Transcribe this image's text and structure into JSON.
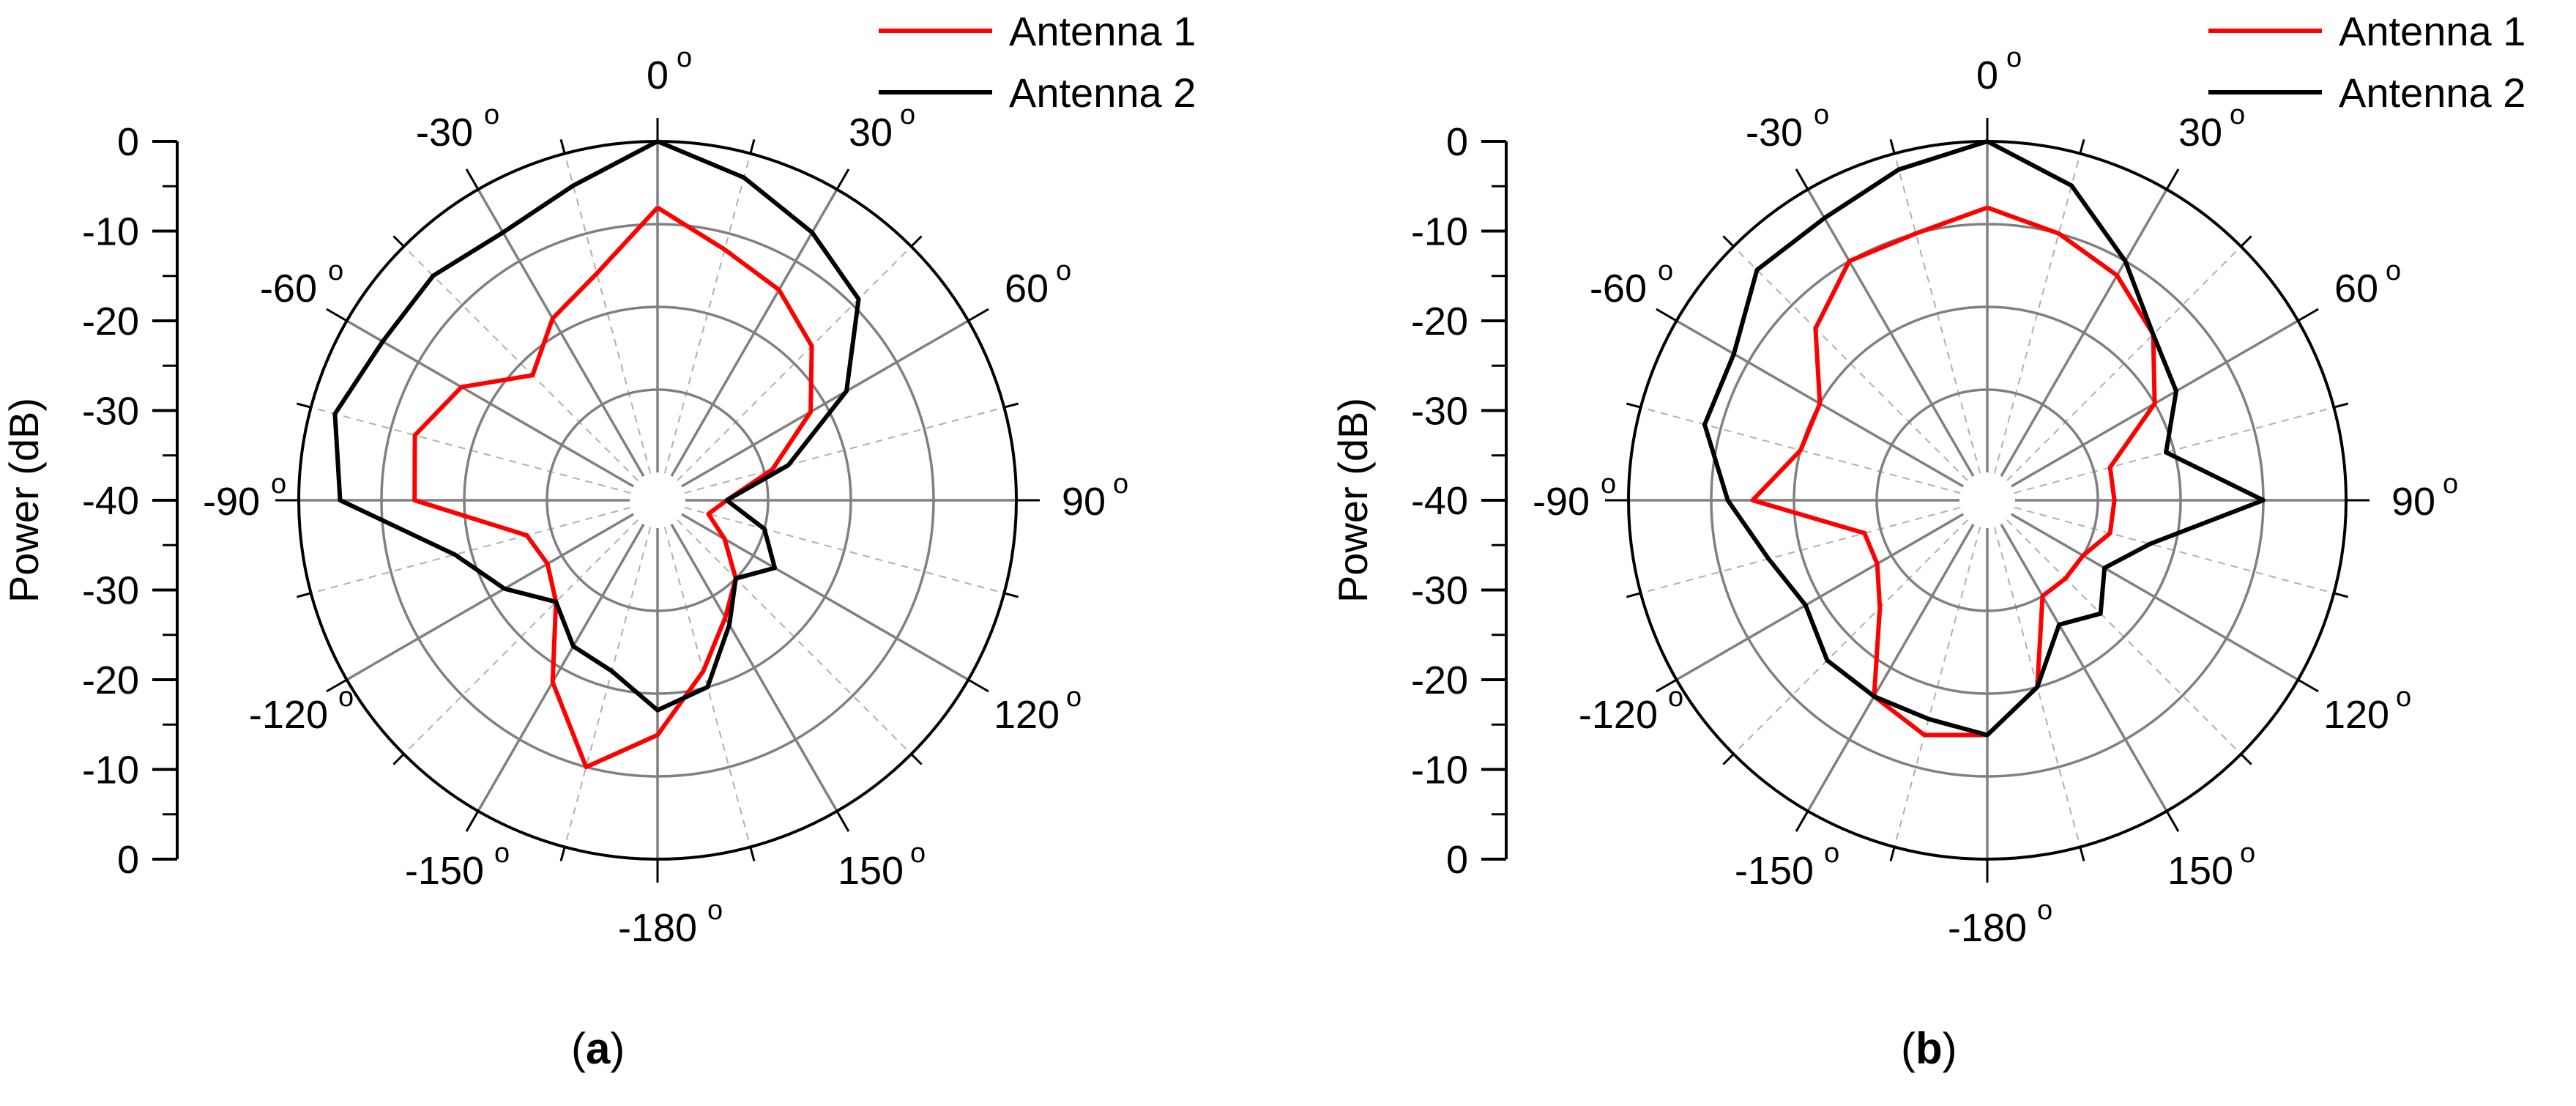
{
  "chart_data": [
    {
      "type": "line",
      "panel_label": "a",
      "polar": true,
      "ylabel": "Power (dB)",
      "radial_range": [
        -40,
        0
      ],
      "radial_ticks": [
        "0",
        "-10",
        "-20",
        "-30",
        "-40",
        "-30",
        "-20",
        "-10",
        "0"
      ],
      "angle_ticks": [
        "0",
        "30",
        "60",
        "90",
        "120",
        "150",
        "-180",
        "-150",
        "-120",
        "-90",
        "-60",
        "-30"
      ],
      "angle_tick_values": [
        0,
        30,
        60,
        90,
        120,
        150,
        180,
        210,
        240,
        270,
        300,
        330
      ],
      "legend": "top-right",
      "grid": true,
      "angles_deg": [
        0,
        15,
        30,
        45,
        60,
        75,
        90,
        105,
        120,
        135,
        150,
        165,
        180,
        195,
        210,
        225,
        240,
        255,
        270,
        285,
        300,
        315,
        330,
        345
      ],
      "series": [
        {
          "name": "Antenna 1",
          "color": "#ff0000",
          "values": [
            -8,
            -12,
            -14,
            -17,
            -22,
            -29,
            -35,
            -37,
            -34,
            -30,
            -27,
            -22,
            -15,
            -10,
            -18,
            -26,
            -28,
            -27,
            -14,
            -13,
            -16,
            -22,
            -18,
            -15
          ]
        },
        {
          "name": "Antenna 2",
          "color": "#000000",
          "values": [
            0,
            -3,
            -6,
            -9,
            -17,
            -27,
            -35,
            -30,
            -27,
            -30,
            -26,
            -20,
            -18,
            -22,
            -23,
            -26,
            -22,
            -18,
            -5,
            -3,
            -5,
            -5,
            -6,
            -4
          ]
        }
      ]
    },
    {
      "type": "line",
      "panel_label": "b",
      "polar": true,
      "ylabel": "Power (dB)",
      "radial_range": [
        -40,
        0
      ],
      "radial_ticks": [
        "0",
        "-10",
        "-20",
        "-30",
        "-40",
        "-30",
        "-20",
        "-10",
        "0"
      ],
      "angle_ticks": [
        "0",
        "30",
        "60",
        "90",
        "120",
        "150",
        "-180",
        "-150",
        "-120",
        "-90",
        "-60",
        "-30"
      ],
      "angle_tick_values": [
        0,
        30,
        60,
        90,
        120,
        150,
        180,
        210,
        240,
        270,
        300,
        330
      ],
      "legend": "top-right",
      "grid": true,
      "angles_deg": [
        0,
        15,
        30,
        45,
        60,
        75,
        90,
        105,
        120,
        135,
        150,
        165,
        180,
        195,
        210,
        225,
        240,
        255,
        270,
        285,
        300,
        315,
        330,
        345
      ],
      "series": [
        {
          "name": "Antenna 1",
          "color": "#ff0000",
          "values": [
            -8,
            -10,
            -12,
            -15,
            -20,
            -28,
            -28,
            -28,
            -30,
            -30,
            -30,
            -20,
            -15,
            -14,
            -16,
            -25,
            -28,
            -28,
            -15,
            -20,
            -20,
            -14,
            -10,
            -10
          ]
        },
        {
          "name": "Antenna 2",
          "color": "#000000",
          "values": [
            0,
            -4,
            -10,
            -15,
            -17,
            -21,
            -10,
            -23,
            -27,
            -24,
            -26,
            -20,
            -15,
            -16,
            -16,
            -16,
            -18,
            -16,
            -12,
            -8,
            -8,
            -4,
            -4,
            -2
          ]
        }
      ]
    }
  ]
}
